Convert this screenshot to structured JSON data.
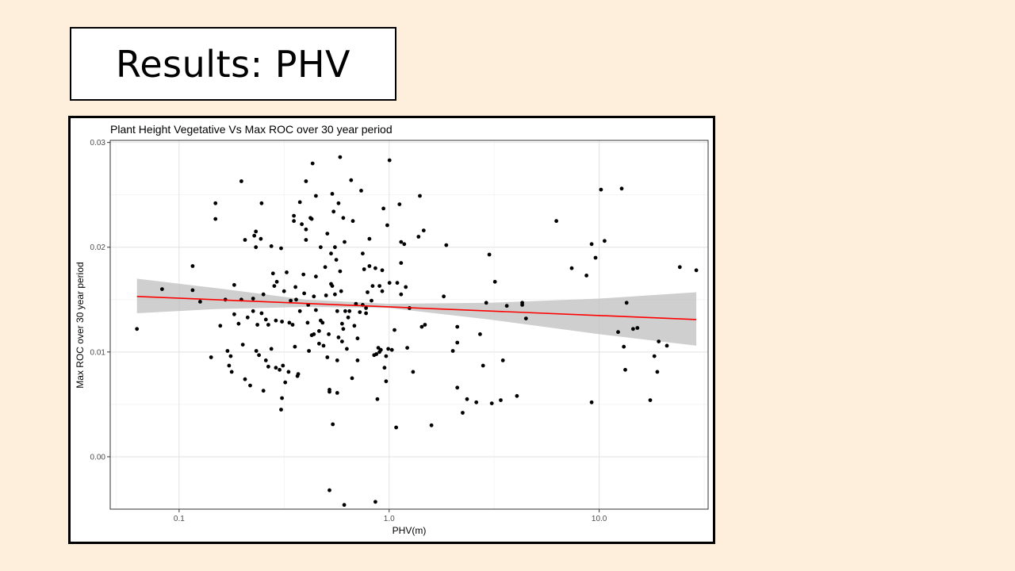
{
  "slide": {
    "title": "Results: PHV"
  },
  "chart_data": {
    "type": "scatter",
    "title": "Plant Height Vegetative Vs Max ROC over 30 year period",
    "xlabel": "PHV(m)",
    "ylabel": "Max ROC over 30 year period",
    "x_scale": "log10",
    "xlim": [
      0.047,
      33
    ],
    "ylim": [
      -0.005,
      0.0302
    ],
    "x_ticks": [
      0.1,
      1.0,
      10.0
    ],
    "x_tick_labels": [
      "0.1",
      "1.0",
      "10.0"
    ],
    "y_ticks": [
      0.0,
      0.01,
      0.02,
      0.03
    ],
    "y_tick_labels": [
      "0.00",
      "0.01",
      "0.02",
      "0.03"
    ],
    "grid": true,
    "trend_line": {
      "color": "#ff0000",
      "x": [
        0.063,
        29
      ],
      "y": [
        0.0153,
        0.0131
      ]
    },
    "confidence_band": {
      "color": "#bfbfbf",
      "x": [
        0.063,
        0.15,
        0.4,
        1.0,
        3.0,
        10.0,
        29
      ],
      "lower": [
        0.0137,
        0.0141,
        0.0143,
        0.0142,
        0.0131,
        0.0117,
        0.0106
      ],
      "upper": [
        0.017,
        0.0161,
        0.015,
        0.0146,
        0.0147,
        0.0151,
        0.0157
      ]
    },
    "points": [
      {
        "x": 0.063,
        "y": 0.0122
      },
      {
        "x": 0.083,
        "y": 0.016
      },
      {
        "x": 0.116,
        "y": 0.0182
      },
      {
        "x": 0.116,
        "y": 0.0159
      },
      {
        "x": 0.126,
        "y": 0.0148
      },
      {
        "x": 0.142,
        "y": 0.0095
      },
      {
        "x": 0.149,
        "y": 0.0242
      },
      {
        "x": 0.149,
        "y": 0.0227
      },
      {
        "x": 0.157,
        "y": 0.0125
      },
      {
        "x": 0.166,
        "y": 0.015
      },
      {
        "x": 0.17,
        "y": 0.0101
      },
      {
        "x": 0.173,
        "y": 0.0087
      },
      {
        "x": 0.176,
        "y": 0.0096
      },
      {
        "x": 0.178,
        "y": 0.0081
      },
      {
        "x": 0.183,
        "y": 0.0164
      },
      {
        "x": 0.183,
        "y": 0.0136
      },
      {
        "x": 0.192,
        "y": 0.0127
      },
      {
        "x": 0.198,
        "y": 0.015
      },
      {
        "x": 0.198,
        "y": 0.0263
      },
      {
        "x": 0.201,
        "y": 0.0107
      },
      {
        "x": 0.206,
        "y": 0.0207
      },
      {
        "x": 0.206,
        "y": 0.0074
      },
      {
        "x": 0.212,
        "y": 0.0133
      },
      {
        "x": 0.218,
        "y": 0.0068
      },
      {
        "x": 0.225,
        "y": 0.0151
      },
      {
        "x": 0.225,
        "y": 0.0139
      },
      {
        "x": 0.228,
        "y": 0.0211
      },
      {
        "x": 0.232,
        "y": 0.02
      },
      {
        "x": 0.232,
        "y": 0.0215
      },
      {
        "x": 0.233,
        "y": 0.0101
      },
      {
        "x": 0.236,
        "y": 0.0126
      },
      {
        "x": 0.24,
        "y": 0.0097
      },
      {
        "x": 0.245,
        "y": 0.0208
      },
      {
        "x": 0.247,
        "y": 0.0137
      },
      {
        "x": 0.247,
        "y": 0.0242
      },
      {
        "x": 0.252,
        "y": 0.0155
      },
      {
        "x": 0.252,
        "y": 0.0063
      },
      {
        "x": 0.259,
        "y": 0.0092
      },
      {
        "x": 0.259,
        "y": 0.0131
      },
      {
        "x": 0.266,
        "y": 0.0086
      },
      {
        "x": 0.266,
        "y": 0.0126
      },
      {
        "x": 0.275,
        "y": 0.0201
      },
      {
        "x": 0.275,
        "y": 0.0103
      },
      {
        "x": 0.28,
        "y": 0.0175
      },
      {
        "x": 0.284,
        "y": 0.0163
      },
      {
        "x": 0.289,
        "y": 0.013
      },
      {
        "x": 0.289,
        "y": 0.0085
      },
      {
        "x": 0.292,
        "y": 0.0167
      },
      {
        "x": 0.301,
        "y": 0.0083
      },
      {
        "x": 0.306,
        "y": 0.0199
      },
      {
        "x": 0.306,
        "y": 0.0045
      },
      {
        "x": 0.309,
        "y": 0.0129
      },
      {
        "x": 0.309,
        "y": 0.0056
      },
      {
        "x": 0.312,
        "y": 0.0087
      },
      {
        "x": 0.316,
        "y": 0.0158
      },
      {
        "x": 0.32,
        "y": 0.0071
      },
      {
        "x": 0.325,
        "y": 0.0176
      },
      {
        "x": 0.332,
        "y": 0.0081
      },
      {
        "x": 0.335,
        "y": 0.0128
      },
      {
        "x": 0.34,
        "y": 0.0149
      },
      {
        "x": 0.347,
        "y": 0.0126
      },
      {
        "x": 0.352,
        "y": 0.0225
      },
      {
        "x": 0.352,
        "y": 0.023
      },
      {
        "x": 0.356,
        "y": 0.0105
      },
      {
        "x": 0.358,
        "y": 0.0162
      },
      {
        "x": 0.361,
        "y": 0.015
      },
      {
        "x": 0.366,
        "y": 0.0077
      },
      {
        "x": 0.369,
        "y": 0.0079
      },
      {
        "x": 0.376,
        "y": 0.0243
      },
      {
        "x": 0.376,
        "y": 0.0139
      },
      {
        "x": 0.384,
        "y": 0.0222
      },
      {
        "x": 0.391,
        "y": 0.0174
      },
      {
        "x": 0.394,
        "y": 0.0156
      },
      {
        "x": 0.402,
        "y": 0.0217
      },
      {
        "x": 0.402,
        "y": 0.0207
      },
      {
        "x": 0.402,
        "y": 0.0263
      },
      {
        "x": 0.409,
        "y": 0.0128
      },
      {
        "x": 0.412,
        "y": 0.0145
      },
      {
        "x": 0.415,
        "y": 0.0101
      },
      {
        "x": 0.422,
        "y": 0.0228
      },
      {
        "x": 0.428,
        "y": 0.0227
      },
      {
        "x": 0.428,
        "y": 0.0116
      },
      {
        "x": 0.432,
        "y": 0.028
      },
      {
        "x": 0.438,
        "y": 0.0117
      },
      {
        "x": 0.438,
        "y": 0.0153
      },
      {
        "x": 0.448,
        "y": 0.0249
      },
      {
        "x": 0.448,
        "y": 0.0172
      },
      {
        "x": 0.448,
        "y": 0.014
      },
      {
        "x": 0.464,
        "y": 0.012
      },
      {
        "x": 0.464,
        "y": 0.0108
      },
      {
        "x": 0.472,
        "y": 0.02
      },
      {
        "x": 0.472,
        "y": 0.013
      },
      {
        "x": 0.482,
        "y": 0.0128
      },
      {
        "x": 0.487,
        "y": 0.0106
      },
      {
        "x": 0.496,
        "y": 0.0181
      },
      {
        "x": 0.501,
        "y": 0.0154
      },
      {
        "x": 0.508,
        "y": 0.0213
      },
      {
        "x": 0.508,
        "y": 0.0095
      },
      {
        "x": 0.516,
        "y": 0.0117
      },
      {
        "x": 0.52,
        "y": 0.0062
      },
      {
        "x": 0.52,
        "y": 0.0064
      },
      {
        "x": 0.52,
        "y": -0.0032
      },
      {
        "x": 0.529,
        "y": 0.0194
      },
      {
        "x": 0.529,
        "y": 0.0165
      },
      {
        "x": 0.536,
        "y": 0.0163
      },
      {
        "x": 0.536,
        "y": 0.0251
      },
      {
        "x": 0.539,
        "y": 0.0031
      },
      {
        "x": 0.544,
        "y": 0.0234
      },
      {
        "x": 0.552,
        "y": 0.02
      },
      {
        "x": 0.552,
        "y": 0.0155
      },
      {
        "x": 0.56,
        "y": 0.0188
      },
      {
        "x": 0.566,
        "y": 0.0139
      },
      {
        "x": 0.566,
        "y": 0.0092
      },
      {
        "x": 0.566,
        "y": 0.0061
      },
      {
        "x": 0.574,
        "y": 0.0242
      },
      {
        "x": 0.574,
        "y": 0.0114
      },
      {
        "x": 0.584,
        "y": 0.0177
      },
      {
        "x": 0.584,
        "y": 0.0286
      },
      {
        "x": 0.591,
        "y": 0.0158
      },
      {
        "x": 0.597,
        "y": 0.0127
      },
      {
        "x": 0.597,
        "y": 0.011
      },
      {
        "x": 0.605,
        "y": 0.0228
      },
      {
        "x": 0.605,
        "y": 0.0122
      },
      {
        "x": 0.611,
        "y": -0.0046
      },
      {
        "x": 0.613,
        "y": 0.0205
      },
      {
        "x": 0.618,
        "y": 0.0139
      },
      {
        "x": 0.629,
        "y": 0.0103
      },
      {
        "x": 0.638,
        "y": 0.0133
      },
      {
        "x": 0.647,
        "y": 0.0139
      },
      {
        "x": 0.659,
        "y": 0.0264
      },
      {
        "x": 0.666,
        "y": 0.0075
      },
      {
        "x": 0.672,
        "y": 0.0225
      },
      {
        "x": 0.683,
        "y": 0.0125
      },
      {
        "x": 0.695,
        "y": 0.0146
      },
      {
        "x": 0.707,
        "y": 0.0092
      },
      {
        "x": 0.707,
        "y": 0.0113
      },
      {
        "x": 0.725,
        "y": 0.0138
      },
      {
        "x": 0.736,
        "y": 0.0254
      },
      {
        "x": 0.748,
        "y": 0.0194
      },
      {
        "x": 0.748,
        "y": 0.0145
      },
      {
        "x": 0.76,
        "y": 0.0179
      },
      {
        "x": 0.776,
        "y": 0.0142
      },
      {
        "x": 0.776,
        "y": 0.0137
      },
      {
        "x": 0.789,
        "y": 0.0157
      },
      {
        "x": 0.806,
        "y": 0.0208
      },
      {
        "x": 0.806,
        "y": 0.0182
      },
      {
        "x": 0.824,
        "y": 0.0149
      },
      {
        "x": 0.834,
        "y": 0.0163
      },
      {
        "x": 0.848,
        "y": 0.0097
      },
      {
        "x": 0.86,
        "y": 0.018
      },
      {
        "x": 0.86,
        "y": -0.0043
      },
      {
        "x": 0.87,
        "y": 0.0098
      },
      {
        "x": 0.879,
        "y": 0.0055
      },
      {
        "x": 0.888,
        "y": 0.0104
      },
      {
        "x": 0.9,
        "y": 0.0163
      },
      {
        "x": 0.9,
        "y": 0.01
      },
      {
        "x": 0.913,
        "y": 0.0102
      },
      {
        "x": 0.927,
        "y": 0.0158
      },
      {
        "x": 0.927,
        "y": 0.0178
      },
      {
        "x": 0.94,
        "y": 0.0237
      },
      {
        "x": 0.95,
        "y": 0.0085
      },
      {
        "x": 0.967,
        "y": 0.0096
      },
      {
        "x": 0.967,
        "y": 0.0072
      },
      {
        "x": 0.98,
        "y": 0.0221
      },
      {
        "x": 0.99,
        "y": 0.0103
      },
      {
        "x": 1.004,
        "y": 0.0283
      },
      {
        "x": 1.004,
        "y": 0.0166
      },
      {
        "x": 1.03,
        "y": 0.0102
      },
      {
        "x": 1.06,
        "y": 0.0121
      },
      {
        "x": 1.08,
        "y": 0.0028
      },
      {
        "x": 1.093,
        "y": 0.0166
      },
      {
        "x": 1.12,
        "y": 0.0241
      },
      {
        "x": 1.14,
        "y": 0.0185
      },
      {
        "x": 1.14,
        "y": 0.0155
      },
      {
        "x": 1.14,
        "y": 0.0205
      },
      {
        "x": 1.18,
        "y": 0.0203
      },
      {
        "x": 1.2,
        "y": 0.0162
      },
      {
        "x": 1.22,
        "y": 0.0104
      },
      {
        "x": 1.25,
        "y": 0.0142
      },
      {
        "x": 1.3,
        "y": 0.0081
      },
      {
        "x": 1.38,
        "y": 0.021
      },
      {
        "x": 1.4,
        "y": 0.0249
      },
      {
        "x": 1.43,
        "y": 0.0124
      },
      {
        "x": 1.46,
        "y": 0.0216
      },
      {
        "x": 1.48,
        "y": 0.0126
      },
      {
        "x": 1.59,
        "y": 0.003
      },
      {
        "x": 1.82,
        "y": 0.0153
      },
      {
        "x": 1.87,
        "y": 0.0202
      },
      {
        "x": 2.01,
        "y": 0.0101
      },
      {
        "x": 2.11,
        "y": 0.0109
      },
      {
        "x": 2.11,
        "y": 0.0124
      },
      {
        "x": 2.11,
        "y": 0.0066
      },
      {
        "x": 2.24,
        "y": 0.0042
      },
      {
        "x": 2.35,
        "y": 0.0055
      },
      {
        "x": 2.6,
        "y": 0.0052
      },
      {
        "x": 2.71,
        "y": 0.0117
      },
      {
        "x": 2.8,
        "y": 0.0087
      },
      {
        "x": 2.9,
        "y": 0.0147
      },
      {
        "x": 3.0,
        "y": 0.0193
      },
      {
        "x": 3.08,
        "y": 0.0051
      },
      {
        "x": 3.19,
        "y": 0.0167
      },
      {
        "x": 3.4,
        "y": 0.0054
      },
      {
        "x": 3.48,
        "y": 0.0092
      },
      {
        "x": 3.63,
        "y": 0.0144
      },
      {
        "x": 4.06,
        "y": 0.0058
      },
      {
        "x": 4.3,
        "y": 0.0147
      },
      {
        "x": 4.3,
        "y": 0.0145
      },
      {
        "x": 4.48,
        "y": 0.0132
      },
      {
        "x": 6.25,
        "y": 0.0225
      },
      {
        "x": 7.4,
        "y": 0.018
      },
      {
        "x": 8.7,
        "y": 0.0173
      },
      {
        "x": 9.2,
        "y": 0.0203
      },
      {
        "x": 9.2,
        "y": 0.0052
      },
      {
        "x": 9.6,
        "y": 0.019
      },
      {
        "x": 10.2,
        "y": 0.0255
      },
      {
        "x": 10.6,
        "y": 0.0206
      },
      {
        "x": 12.3,
        "y": 0.0119
      },
      {
        "x": 12.8,
        "y": 0.0256
      },
      {
        "x": 13.1,
        "y": 0.0105
      },
      {
        "x": 13.3,
        "y": 0.0083
      },
      {
        "x": 13.5,
        "y": 0.0147
      },
      {
        "x": 14.5,
        "y": 0.0122
      },
      {
        "x": 15.2,
        "y": 0.0123
      },
      {
        "x": 17.5,
        "y": 0.0054
      },
      {
        "x": 18.3,
        "y": 0.0096
      },
      {
        "x": 18.9,
        "y": 0.0081
      },
      {
        "x": 19.2,
        "y": 0.011
      },
      {
        "x": 21.0,
        "y": 0.0106
      },
      {
        "x": 24.2,
        "y": 0.0181
      },
      {
        "x": 29.0,
        "y": 0.0178
      }
    ]
  }
}
